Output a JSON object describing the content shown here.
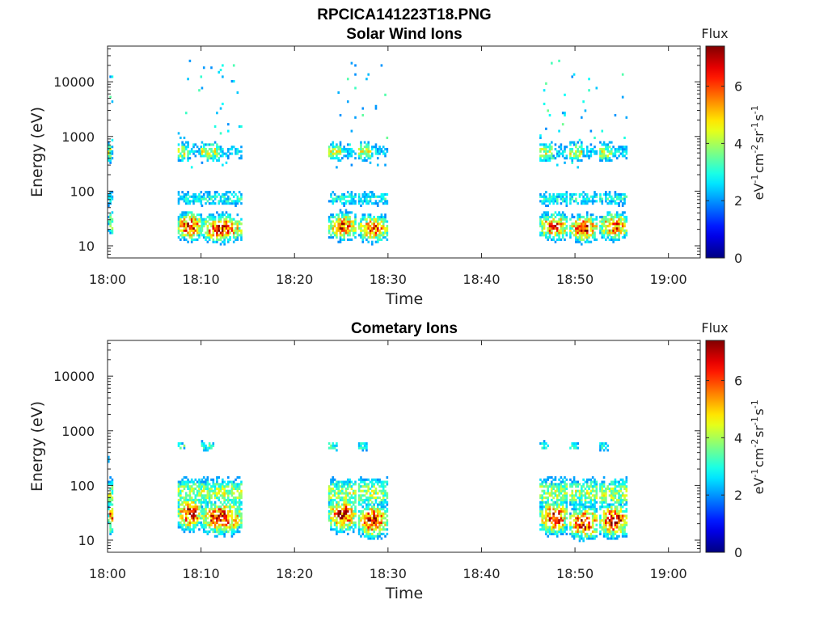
{
  "figure": {
    "title": "RPCICA141223T18.PNG"
  },
  "chart_data": [
    {
      "type": "heatmap",
      "title": "Solar Wind Ions",
      "xlabel": "Time",
      "ylabel": "Energy (eV)",
      "y_scale": "log",
      "ylim": [
        6,
        45000
      ],
      "x_ticks": [
        "18:00",
        "18:10",
        "18:20",
        "18:30",
        "18:40",
        "18:50",
        "19:00"
      ],
      "y_ticks": [
        "10",
        "100",
        "1000",
        "10000"
      ],
      "colorbar": {
        "title": "Flux",
        "label": "eV-1cm-2sr-1s-1",
        "ticks": [
          "0",
          "2",
          "4",
          "6"
        ],
        "range": [
          0,
          7.4
        ],
        "colormap": "jet"
      },
      "bursts": [
        {
          "start_min": 0.0,
          "end_min": 0.6,
          "core_energy_ev": 25,
          "peak_flux": 4.8,
          "hi_energy_ev": 500
        },
        {
          "start_min": 7.5,
          "end_min": 9.9,
          "core_energy_ev": 22,
          "peak_flux": 7.2,
          "hi_energy_ev": 500
        },
        {
          "start_min": 10.0,
          "end_min": 14.2,
          "core_energy_ev": 20,
          "peak_flux": 7.0,
          "hi_energy_ev": 500
        },
        {
          "start_min": 23.6,
          "end_min": 26.5,
          "core_energy_ev": 22,
          "peak_flux": 6.8,
          "hi_energy_ev": 500
        },
        {
          "start_min": 26.8,
          "end_min": 29.8,
          "core_energy_ev": 20,
          "peak_flux": 6.6,
          "hi_energy_ev": 500
        },
        {
          "start_min": 46.2,
          "end_min": 49.2,
          "core_energy_ev": 22,
          "peak_flux": 6.6,
          "hi_energy_ev": 500
        },
        {
          "start_min": 49.4,
          "end_min": 52.4,
          "core_energy_ev": 20,
          "peak_flux": 7.0,
          "hi_energy_ev": 500
        },
        {
          "start_min": 52.6,
          "end_min": 55.6,
          "core_energy_ev": 22,
          "peak_flux": 6.6,
          "hi_energy_ev": 500
        }
      ]
    },
    {
      "type": "heatmap",
      "title": "Cometary Ions",
      "xlabel": "Time",
      "ylabel": "Energy (eV)",
      "y_scale": "log",
      "ylim": [
        6,
        45000
      ],
      "x_ticks": [
        "18:00",
        "18:10",
        "18:20",
        "18:30",
        "18:40",
        "18:50",
        "19:00"
      ],
      "y_ticks": [
        "10",
        "100",
        "1000",
        "10000"
      ],
      "colorbar": {
        "title": "Flux",
        "label": "eV-1cm-2sr-1s-1",
        "ticks": [
          "0",
          "2",
          "4",
          "6"
        ],
        "range": [
          0,
          7.4
        ],
        "colormap": "jet"
      },
      "bursts": [
        {
          "start_min": 0.0,
          "end_min": 0.6,
          "core_energy_ev": 25,
          "peak_flux": 6.4,
          "hi_energy_ev": 300
        },
        {
          "start_min": 7.5,
          "end_min": 9.9,
          "core_energy_ev": 30,
          "peak_flux": 7.4,
          "hi_energy_ev": 500
        },
        {
          "start_min": 10.0,
          "end_min": 14.2,
          "core_energy_ev": 25,
          "peak_flux": 7.4,
          "hi_energy_ev": 500
        },
        {
          "start_min": 23.6,
          "end_min": 26.5,
          "core_energy_ev": 28,
          "peak_flux": 7.2,
          "hi_energy_ev": 500
        },
        {
          "start_min": 26.8,
          "end_min": 29.8,
          "core_energy_ev": 22,
          "peak_flux": 7.4,
          "hi_energy_ev": 500
        },
        {
          "start_min": 46.2,
          "end_min": 49.2,
          "core_energy_ev": 25,
          "peak_flux": 7.2,
          "hi_energy_ev": 500
        },
        {
          "start_min": 49.4,
          "end_min": 52.4,
          "core_energy_ev": 20,
          "peak_flux": 7.4,
          "hi_energy_ev": 500
        },
        {
          "start_min": 52.6,
          "end_min": 55.6,
          "core_energy_ev": 22,
          "peak_flux": 7.4,
          "hi_energy_ev": 500
        }
      ]
    }
  ]
}
